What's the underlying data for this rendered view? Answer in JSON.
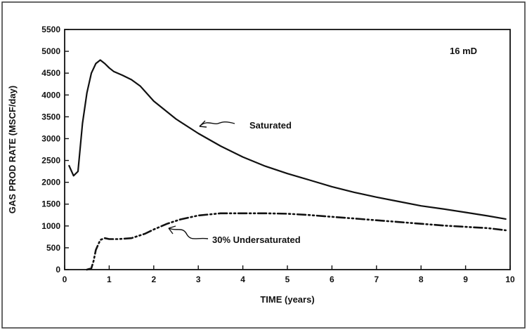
{
  "chart_data": {
    "type": "line",
    "title": "",
    "xlabel": "TIME (years)",
    "ylabel": "GAS PROD RATE (MSCF/day)",
    "xlim": [
      0,
      10
    ],
    "ylim": [
      0,
      5500
    ],
    "xticks": [
      0,
      1,
      2,
      3,
      4,
      5,
      6,
      7,
      8,
      9,
      10
    ],
    "yticks": [
      0,
      500,
      1000,
      1500,
      2000,
      2500,
      3000,
      3500,
      4000,
      4500,
      5000,
      5500
    ],
    "grid": false,
    "legend": "none",
    "annotation": "16 mD",
    "series": [
      {
        "name": "Saturated",
        "style": "solid",
        "color": "#111111",
        "x": [
          0.1,
          0.2,
          0.3,
          0.4,
          0.5,
          0.6,
          0.7,
          0.8,
          0.9,
          1.0,
          1.1,
          1.3,
          1.5,
          1.7,
          2.0,
          2.5,
          3.0,
          3.5,
          4.0,
          4.5,
          5.0,
          5.5,
          6.0,
          6.5,
          7.0,
          7.5,
          8.0,
          8.5,
          9.0,
          9.5,
          9.9
        ],
        "y": [
          2380,
          2150,
          2250,
          3350,
          4050,
          4500,
          4720,
          4800,
          4720,
          4620,
          4540,
          4450,
          4350,
          4200,
          3860,
          3450,
          3120,
          2830,
          2580,
          2370,
          2200,
          2050,
          1900,
          1770,
          1660,
          1560,
          1460,
          1390,
          1310,
          1230,
          1160
        ]
      },
      {
        "name": "30% Undersaturated",
        "style": "dash-dot",
        "color": "#111111",
        "x": [
          0.5,
          0.6,
          0.65,
          0.7,
          0.8,
          0.9,
          1.0,
          1.2,
          1.5,
          1.8,
          2.0,
          2.3,
          2.6,
          3.0,
          3.5,
          4.0,
          4.5,
          5.0,
          5.5,
          6.0,
          6.5,
          7.0,
          7.5,
          8.0,
          8.5,
          9.0,
          9.5,
          9.9
        ],
        "y": [
          0,
          30,
          200,
          450,
          680,
          720,
          700,
          700,
          720,
          820,
          920,
          1050,
          1150,
          1240,
          1290,
          1290,
          1290,
          1280,
          1250,
          1210,
          1170,
          1130,
          1090,
          1050,
          1010,
          980,
          950,
          900
        ]
      }
    ],
    "labels": {
      "saturated": "Saturated",
      "undersaturated": "30% Undersaturated"
    }
  }
}
